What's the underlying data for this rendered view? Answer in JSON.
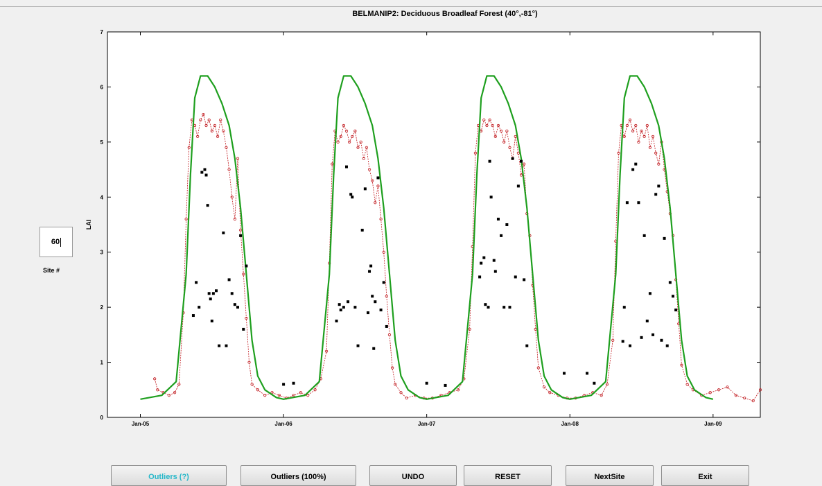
{
  "site": {
    "value": "60",
    "label": "Site #"
  },
  "buttons": [
    {
      "label": "Outliers (?)"
    },
    {
      "label": "Outliers (100%)"
    },
    {
      "label": "UNDO"
    },
    {
      "label": "RESET"
    },
    {
      "label": "NextSite"
    },
    {
      "label": "Exit"
    }
  ],
  "colors": {
    "model_line": "#1e9f1e",
    "observed": "#c0161b",
    "outlier": "#000000",
    "accent_button_text": "#25b7c9"
  },
  "chart_data": {
    "type": "line",
    "title": "BELMANIP2: Deciduous Broadleaf Forest (40°,-81°)",
    "xlabel": "",
    "ylabel": "LAI",
    "xlim": [
      2004.77,
      2009.33
    ],
    "ylim": [
      0,
      7
    ],
    "x_ticks": [
      {
        "label": "Jan-05",
        "value": 2005.0
      },
      {
        "label": "Jan-06",
        "value": 2006.0
      },
      {
        "label": "Jan-07",
        "value": 2007.0
      },
      {
        "label": "Jan-08",
        "value": 2008.0
      },
      {
        "label": "Jan-09",
        "value": 2009.0
      }
    ],
    "y_ticks": [
      0,
      1,
      2,
      3,
      4,
      5,
      6,
      7
    ],
    "grid": false,
    "series": [
      {
        "style": "solid-green-line",
        "x": [
          2005.0,
          2005.15,
          2005.25,
          2005.32,
          2005.35,
          2005.38,
          2005.42,
          2005.47,
          2005.52,
          2005.57,
          2005.62,
          2005.66,
          2005.7,
          2005.74,
          2005.78,
          2005.82,
          2005.87,
          2005.95,
          2006.0,
          2006.15,
          2006.25,
          2006.32,
          2006.35,
          2006.38,
          2006.42,
          2006.47,
          2006.52,
          2006.57,
          2006.62,
          2006.66,
          2006.7,
          2006.74,
          2006.78,
          2006.82,
          2006.87,
          2006.95,
          2007.0,
          2007.15,
          2007.25,
          2007.32,
          2007.35,
          2007.38,
          2007.42,
          2007.47,
          2007.52,
          2007.57,
          2007.62,
          2007.66,
          2007.7,
          2007.74,
          2007.78,
          2007.82,
          2007.87,
          2007.95,
          2008.0,
          2008.15,
          2008.25,
          2008.32,
          2008.35,
          2008.38,
          2008.42,
          2008.47,
          2008.52,
          2008.57,
          2008.62,
          2008.66,
          2008.7,
          2008.74,
          2008.78,
          2008.82,
          2008.87,
          2008.95,
          2009.0
        ],
        "y": [
          0.33,
          0.4,
          0.65,
          2.6,
          4.4,
          5.8,
          6.2,
          6.2,
          6.0,
          5.7,
          5.3,
          4.7,
          3.8,
          2.6,
          1.4,
          0.75,
          0.5,
          0.36,
          0.33,
          0.4,
          0.65,
          2.6,
          4.4,
          5.8,
          6.2,
          6.2,
          6.0,
          5.7,
          5.3,
          4.7,
          3.8,
          2.6,
          1.4,
          0.75,
          0.5,
          0.36,
          0.33,
          0.4,
          0.65,
          2.6,
          4.4,
          5.8,
          6.2,
          6.2,
          6.0,
          5.7,
          5.3,
          4.7,
          3.8,
          2.6,
          1.4,
          0.75,
          0.5,
          0.36,
          0.33,
          0.4,
          0.65,
          2.6,
          4.4,
          5.8,
          6.2,
          6.2,
          6.0,
          5.7,
          5.3,
          4.7,
          3.8,
          2.6,
          1.4,
          0.75,
          0.5,
          0.36,
          0.33
        ]
      },
      {
        "style": "red-dotted-circles",
        "x": [
          2005.1,
          2005.12,
          2005.16,
          2005.2,
          2005.24,
          2005.27,
          2005.3,
          2005.32,
          2005.34,
          2005.36,
          2005.38,
          2005.4,
          2005.42,
          2005.44,
          2005.46,
          2005.48,
          2005.5,
          2005.52,
          2005.54,
          2005.56,
          2005.58,
          2005.6,
          2005.62,
          2005.64,
          2005.66,
          2005.68,
          2005.7,
          2005.72,
          2005.74,
          2005.76,
          2005.78,
          2005.82,
          2005.87,
          2005.92,
          2005.97,
          2006.02,
          2006.07,
          2006.12,
          2006.17,
          2006.22,
          2006.26,
          2006.3,
          2006.32,
          2006.34,
          2006.36,
          2006.38,
          2006.4,
          2006.42,
          2006.44,
          2006.46,
          2006.48,
          2006.5,
          2006.52,
          2006.54,
          2006.56,
          2006.58,
          2006.6,
          2006.62,
          2006.64,
          2006.66,
          2006.68,
          2006.7,
          2006.72,
          2006.74,
          2006.76,
          2006.78,
          2006.82,
          2006.86,
          2006.92,
          2006.98,
          2007.04,
          2007.1,
          2007.16,
          2007.22,
          2007.26,
          2007.3,
          2007.32,
          2007.34,
          2007.36,
          2007.38,
          2007.4,
          2007.42,
          2007.44,
          2007.46,
          2007.48,
          2007.5,
          2007.52,
          2007.54,
          2007.56,
          2007.58,
          2007.6,
          2007.62,
          2007.64,
          2007.66,
          2007.68,
          2007.7,
          2007.72,
          2007.74,
          2007.76,
          2007.78,
          2007.82,
          2007.86,
          2007.92,
          2007.98,
          2008.04,
          2008.1,
          2008.16,
          2008.22,
          2008.26,
          2008.3,
          2008.32,
          2008.34,
          2008.36,
          2008.38,
          2008.4,
          2008.42,
          2008.44,
          2008.46,
          2008.48,
          2008.5,
          2008.52,
          2008.54,
          2008.56,
          2008.58,
          2008.6,
          2008.62,
          2008.64,
          2008.66,
          2008.68,
          2008.7,
          2008.72,
          2008.74,
          2008.76,
          2008.78,
          2008.82,
          2008.86,
          2008.92,
          2008.98,
          2009.04,
          2009.1,
          2009.16,
          2009.22,
          2009.28,
          2009.33
        ],
        "y": [
          0.7,
          0.5,
          0.45,
          0.4,
          0.45,
          0.6,
          1.9,
          3.6,
          4.9,
          5.4,
          5.3,
          5.1,
          5.4,
          5.5,
          5.3,
          5.4,
          5.2,
          5.3,
          5.1,
          5.4,
          5.2,
          4.9,
          4.5,
          4.0,
          3.6,
          4.7,
          3.4,
          2.6,
          1.8,
          1.0,
          0.6,
          0.5,
          0.4,
          0.45,
          0.4,
          0.35,
          0.4,
          0.45,
          0.4,
          0.5,
          0.7,
          1.2,
          2.8,
          4.6,
          5.2,
          5.0,
          5.1,
          5.3,
          5.2,
          5.0,
          5.1,
          5.2,
          4.9,
          5.0,
          4.7,
          4.9,
          4.5,
          4.3,
          3.9,
          4.2,
          3.6,
          3.0,
          2.2,
          1.5,
          0.9,
          0.6,
          0.45,
          0.35,
          0.4,
          0.35,
          0.35,
          0.4,
          0.45,
          0.5,
          0.7,
          1.6,
          3.1,
          4.8,
          5.3,
          5.2,
          5.4,
          5.3,
          5.4,
          5.3,
          5.1,
          5.3,
          5.2,
          5.0,
          5.2,
          4.9,
          4.7,
          5.1,
          4.8,
          4.4,
          4.6,
          3.7,
          3.3,
          2.4,
          1.6,
          0.9,
          0.55,
          0.45,
          0.4,
          0.35,
          0.35,
          0.4,
          0.45,
          0.4,
          0.6,
          1.4,
          3.2,
          4.8,
          5.3,
          5.1,
          5.3,
          5.4,
          5.2,
          5.3,
          5.0,
          5.2,
          5.1,
          5.3,
          4.9,
          5.1,
          4.8,
          4.6,
          5.0,
          4.5,
          4.1,
          3.7,
          3.3,
          2.5,
          1.7,
          0.95,
          0.6,
          0.5,
          0.4,
          0.45,
          0.5,
          0.55,
          0.4,
          0.35,
          0.3,
          0.5
        ]
      },
      {
        "style": "black-squares",
        "x": [
          2005.37,
          2005.39,
          2005.41,
          2005.43,
          2005.45,
          2005.46,
          2005.47,
          2005.48,
          2005.49,
          2005.5,
          2005.51,
          2005.53,
          2005.55,
          2005.58,
          2005.6,
          2005.62,
          2005.64,
          2005.66,
          2005.68,
          2005.7,
          2005.72,
          2005.74,
          2006.0,
          2006.07,
          2006.37,
          2006.39,
          2006.4,
          2006.42,
          2006.44,
          2006.45,
          2006.47,
          2006.48,
          2006.5,
          2006.52,
          2006.55,
          2006.57,
          2006.59,
          2006.6,
          2006.61,
          2006.62,
          2006.63,
          2006.64,
          2006.66,
          2006.68,
          2006.7,
          2006.72,
          2007.0,
          2007.13,
          2007.37,
          2007.38,
          2007.4,
          2007.41,
          2007.43,
          2007.44,
          2007.45,
          2007.47,
          2007.48,
          2007.5,
          2007.52,
          2007.54,
          2007.56,
          2007.58,
          2007.6,
          2007.62,
          2007.64,
          2007.66,
          2007.68,
          2007.7,
          2007.96,
          2008.12,
          2008.17,
          2008.37,
          2008.38,
          2008.4,
          2008.42,
          2008.44,
          2008.46,
          2008.48,
          2008.5,
          2008.52,
          2008.54,
          2008.56,
          2008.58,
          2008.6,
          2008.62,
          2008.64,
          2008.66,
          2008.68,
          2008.7,
          2008.72,
          2008.74
        ],
        "y": [
          1.85,
          2.45,
          2.0,
          4.45,
          4.5,
          4.4,
          3.85,
          2.25,
          2.15,
          1.75,
          2.25,
          2.3,
          1.3,
          3.35,
          1.3,
          2.5,
          2.25,
          2.05,
          2.0,
          3.3,
          1.6,
          2.75,
          0.6,
          0.62,
          1.75,
          2.05,
          1.95,
          2.0,
          4.55,
          2.1,
          4.05,
          4.0,
          2.0,
          1.3,
          3.4,
          4.15,
          1.9,
          2.65,
          2.75,
          2.2,
          1.25,
          2.1,
          4.35,
          1.95,
          2.45,
          1.65,
          0.62,
          0.58,
          2.55,
          2.8,
          2.9,
          2.05,
          2.0,
          4.65,
          4.0,
          2.85,
          2.65,
          3.6,
          3.3,
          2.0,
          3.5,
          2.0,
          4.7,
          2.55,
          4.2,
          4.65,
          2.5,
          1.3,
          0.8,
          0.8,
          0.62,
          1.38,
          2.0,
          3.9,
          1.3,
          4.5,
          4.6,
          3.9,
          1.45,
          3.3,
          1.75,
          2.25,
          1.5,
          4.05,
          4.2,
          1.4,
          3.25,
          1.3,
          2.45,
          2.2,
          1.95
        ]
      }
    ]
  }
}
